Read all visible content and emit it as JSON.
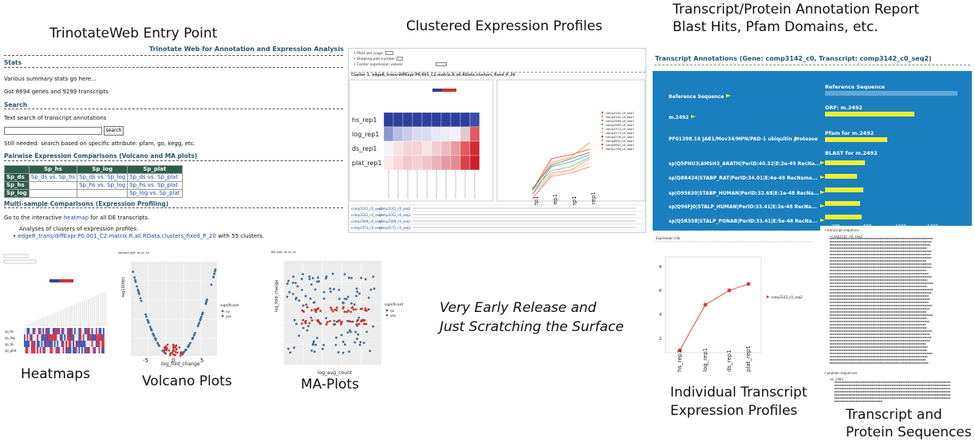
{
  "captions": {
    "entry": "TrinotateWeb Entry Point",
    "clustered": "Clustered Expression Profiles",
    "annotation_1": "Transcript/Protein Annotation Report",
    "annotation_2": "Blast Hits, Pfam Domains, etc.",
    "early_1": "Very Early Release and",
    "early_2": "Just Scratching the Surface",
    "heatmaps": "Heatmaps",
    "volcano": "Volcano Plots",
    "ma": "MA-Plots",
    "individual_1": "Individual Transcript",
    "individual_2": "Expression Profiles",
    "sequences_1": "Transcript and",
    "sequences_2": "Protein Sequences"
  },
  "entry": {
    "title": "Trinotate Web for Annotation and Expression Analysis",
    "stats_heading": "Stats",
    "stats_line1": "Various summary stats go here...",
    "stats_line2": "Got 8694 genes and 9299 transcripts",
    "search_heading": "Search",
    "search_text": "Text search of transcript annotations",
    "search_button": "search",
    "search_note": "Still needed: search based on specific attribute: pfam, go, kegg, etc.",
    "pairwise_heading": "Pairwise Expression Comparisons (Volcano and MA plots)",
    "table": {
      "headers": [
        "Sp_hs",
        "Sp_log",
        "Sp_plat"
      ],
      "rows": [
        {
          "label": "Sp_ds",
          "cells": [
            "Sp_ds vs. Sp_hs",
            "Sp_ds vs. Sp_log",
            "Sp_ds vs. Sp_plat"
          ]
        },
        {
          "label": "Sp_hs",
          "cells": [
            "",
            "Sp_hs vs. Sp_log",
            "Sp_hs vs. Sp_plat"
          ]
        },
        {
          "label": "Sp_log",
          "cells": [
            "",
            "",
            "Sp_log vs. Sp_plat"
          ]
        }
      ]
    },
    "multi_heading": "Multi-sample Comparisons (Expression Profiling)",
    "multi_pre": "Go to the interactive ",
    "multi_link": "heatmap",
    "multi_post": " for all DE transcripts.",
    "analyses": "Analyses of clusters of expression profiles:",
    "cluster_link": "edgeR_trans/diffExpr.P0.001_C2.matrix.R.all.RData.clusters_fixed_P_20",
    "cluster_post": " with 55 clusters."
  },
  "cluster": {
    "ctrl1": "Plots per page:",
    "ctrl2": "Showing plot number",
    "ctrl3": "Center expression values:",
    "title": "Cluster 1, edgeR_trans/diffExpr.P0.001_C2.matrix.R.all.RData.clusters_fixed_P_20",
    "row_labels": [
      "hs_rep1",
      "log_rep1",
      "ds_rep1",
      "plat_rep1"
    ],
    "x_labels": [
      "hs_rep1",
      "log_rep1",
      "ds_rep1",
      "plat_rep1"
    ],
    "legend": [
      "comp3142_c0_seq2",
      "comp3142_c0_seq1",
      "comp2589_c0_seq2",
      "comp2589_c0_seq1",
      "comp2373_c0_seq1",
      "comp4172_c0_seq1",
      "comp4276_c0_seq1",
      "comp5641_c0_seq1",
      "comp5641_c0_seq2",
      "comp1749_c0_seq1"
    ],
    "table_rows": [
      [
        "comp3142_c0_seq2",
        "comp3142_c0_seq2"
      ],
      [
        "comp3142_c0_seq1",
        "comp3142_c0_seq1"
      ],
      [
        "comp2589_c0_seq2",
        "comp2589_c0_seq1"
      ],
      [
        "comp2373_c0_seq1",
        "comp4172_c0_seq1"
      ]
    ]
  },
  "annotation": {
    "header": "Transcript Annotations (Gene: comp3142_c0, Transcript: comp3142_c0_seq2)",
    "left_labels": [
      "Reference Sequence",
      "m.2492",
      "PF01398.16 JAB1/Mov34/MPN/PAD-1 ubiquitin protease",
      "sp|Q5PNU3|AMSH3_ARATH|PerID:40.32|E:2e-49 RecNa...",
      "sp|Q8R424|STABP_RAT|PerID:34.01|E:4e-49 RecName...",
      "sp|O95630|STABP_HUMAN|PerID:32.68|E:1e-48 RecNa...",
      "sp|Q96FJ0|STALP_HUMAN|PerID:33.41|E:2e-48 RecNa...",
      "sp|Q5R558|STALP_PONAB|PerID:33.41|E:5e-48 RecNa..."
    ],
    "right_labels": [
      "Reference Sequence",
      "ORF: m.2492",
      "Pfam for m.2492",
      "BLAST for m.2492"
    ],
    "axis": [
      "200",
      "600",
      "1000",
      "1400"
    ]
  },
  "individual": {
    "title": "Expression info",
    "legend": "comp3142_c0_seq2",
    "x_labels": [
      "hs_rep1",
      "log_rep1",
      "ds_rep1",
      "plat_rep1"
    ],
    "y_ticks": [
      "8",
      "6",
      "4",
      "2"
    ]
  },
  "sequences": {
    "head": "transcript sequence",
    "id": ">comp3142_c0_seq2",
    "pep_head": "peptide sequences",
    "pep_id": ">m.2492"
  },
  "heatmap": {
    "rows": [
      "sp_hs",
      "sp_log",
      "sp_ds",
      "sp_plat"
    ]
  },
  "volcano": {
    "title": "Volcano plot: ds vs. hs",
    "xlabel": "log_fold_change",
    "ylabel": "-log10(fdr)",
    "legend_title": "significant",
    "legend": [
      "no",
      "yes"
    ],
    "x_ticks": [
      "-5",
      "0",
      "5"
    ]
  },
  "maplot": {
    "title": "MA plot: ds vs. hs",
    "xlabel": "log_avg_count",
    "ylabel": "log_fold_change",
    "legend_title": "significant",
    "legend": [
      "no",
      "yes"
    ]
  }
}
